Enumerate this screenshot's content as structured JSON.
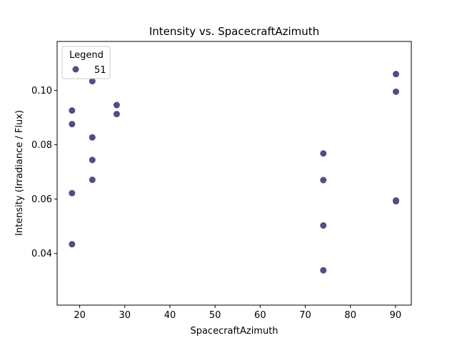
{
  "chart_data": {
    "type": "scatter",
    "title": "Intensity vs. SpacecraftAzimuth",
    "xlabel": "SpacecraftAzimuth",
    "ylabel": "Intensity (Irradiance / Flux)",
    "xlim": [
      15,
      93.5
    ],
    "ylim": [
      0.021,
      0.118
    ],
    "xticks": [
      20,
      30,
      40,
      50,
      60,
      70,
      80,
      90
    ],
    "yticks": [
      0.04,
      0.06,
      0.08,
      0.1
    ],
    "ytick_labels": [
      "0.04",
      "0.06",
      "0.08",
      "0.10"
    ],
    "grid": false,
    "legend": {
      "title": "Legend",
      "placement": "top-left",
      "entries": [
        "51"
      ]
    },
    "series": [
      {
        "name": "51",
        "color": "#554a8c",
        "points": [
          {
            "x": 18.3,
            "y": 0.0926
          },
          {
            "x": 18.3,
            "y": 0.0876
          },
          {
            "x": 18.3,
            "y": 0.0622
          },
          {
            "x": 18.3,
            "y": 0.0434
          },
          {
            "x": 22.8,
            "y": 0.1034
          },
          {
            "x": 22.8,
            "y": 0.0827
          },
          {
            "x": 22.8,
            "y": 0.0744
          },
          {
            "x": 22.8,
            "y": 0.0671
          },
          {
            "x": 28.2,
            "y": 0.0946
          },
          {
            "x": 28.2,
            "y": 0.0913
          },
          {
            "x": 74.0,
            "y": 0.0768
          },
          {
            "x": 74.0,
            "y": 0.067
          },
          {
            "x": 74.0,
            "y": 0.0503
          },
          {
            "x": 74.0,
            "y": 0.0338
          },
          {
            "x": 90.1,
            "y": 0.106
          },
          {
            "x": 90.1,
            "y": 0.0995
          },
          {
            "x": 90.1,
            "y": 0.0595
          },
          {
            "x": 90.1,
            "y": 0.0592
          }
        ]
      }
    ]
  }
}
